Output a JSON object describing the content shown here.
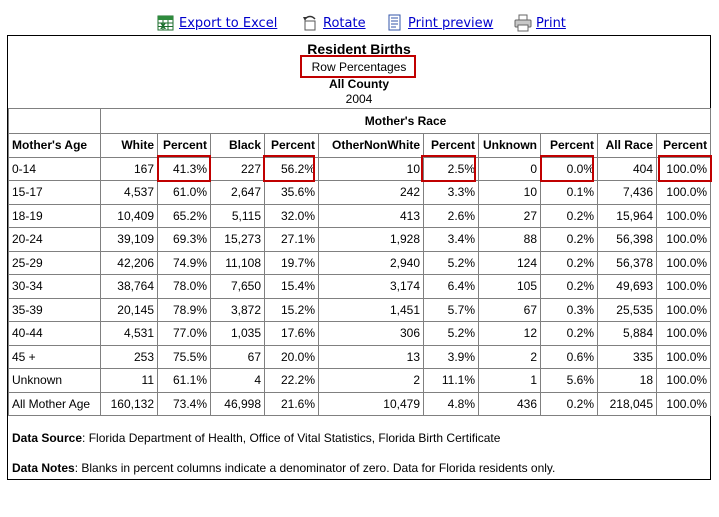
{
  "toolbar": {
    "items": [
      {
        "label": "Export to Excel",
        "icon": "excel-icon"
      },
      {
        "label": "Rotate",
        "icon": "rotate-icon"
      },
      {
        "label": "Print preview",
        "icon": "print-preview-icon"
      },
      {
        "label": "Print",
        "icon": "printer-icon"
      }
    ]
  },
  "report": {
    "title": "Resident Births",
    "subtitle": "Row Percentages",
    "county": "All County",
    "year": "2004",
    "group_header": "Mother's Race",
    "columns": [
      "Mother's Age",
      "White",
      "Percent",
      "Black",
      "Percent",
      "OtherNonWhite",
      "Percent",
      "Unknown",
      "Percent",
      "All Race",
      "Percent"
    ],
    "rows": [
      [
        "0-14",
        "167",
        "41.3%",
        "227",
        "56.2%",
        "10",
        "2.5%",
        "0",
        "0.0%",
        "404",
        "100.0%"
      ],
      [
        "15-17",
        "4,537",
        "61.0%",
        "2,647",
        "35.6%",
        "242",
        "3.3%",
        "10",
        "0.1%",
        "7,436",
        "100.0%"
      ],
      [
        "18-19",
        "10,409",
        "65.2%",
        "5,115",
        "32.0%",
        "413",
        "2.6%",
        "27",
        "0.2%",
        "15,964",
        "100.0%"
      ],
      [
        "20-24",
        "39,109",
        "69.3%",
        "15,273",
        "27.1%",
        "1,928",
        "3.4%",
        "88",
        "0.2%",
        "56,398",
        "100.0%"
      ],
      [
        "25-29",
        "42,206",
        "74.9%",
        "11,108",
        "19.7%",
        "2,940",
        "5.2%",
        "124",
        "0.2%",
        "56,378",
        "100.0%"
      ],
      [
        "30-34",
        "38,764",
        "78.0%",
        "7,650",
        "15.4%",
        "3,174",
        "6.4%",
        "105",
        "0.2%",
        "49,693",
        "100.0%"
      ],
      [
        "35-39",
        "20,145",
        "78.9%",
        "3,872",
        "15.2%",
        "1,451",
        "5.7%",
        "67",
        "0.3%",
        "25,535",
        "100.0%"
      ],
      [
        "40-44",
        "4,531",
        "77.0%",
        "1,035",
        "17.6%",
        "306",
        "5.2%",
        "12",
        "0.2%",
        "5,884",
        "100.0%"
      ],
      [
        "45 +",
        "253",
        "75.5%",
        "67",
        "20.0%",
        "13",
        "3.9%",
        "2",
        "0.6%",
        "335",
        "100.0%"
      ],
      [
        "Unknown",
        "11",
        "61.1%",
        "4",
        "22.2%",
        "2",
        "11.1%",
        "1",
        "5.6%",
        "18",
        "100.0%"
      ],
      [
        "All Mother Age",
        "160,132",
        "73.4%",
        "46,998",
        "21.6%",
        "10,479",
        "4.8%",
        "436",
        "0.2%",
        "218,045",
        "100.0%"
      ]
    ],
    "data_source_label": "Data Source",
    "data_source_text": ": Florida Department of Health, Office of Vital Statistics, Florida Birth Certificate",
    "data_notes_label": "Data Notes",
    "data_notes_text": ": Blanks in percent columns indicate a denominator of zero. Data for Florida residents only."
  },
  "colors": {
    "link": "#0000cc",
    "highlight_border": "#c00000",
    "grid": "#808080"
  }
}
